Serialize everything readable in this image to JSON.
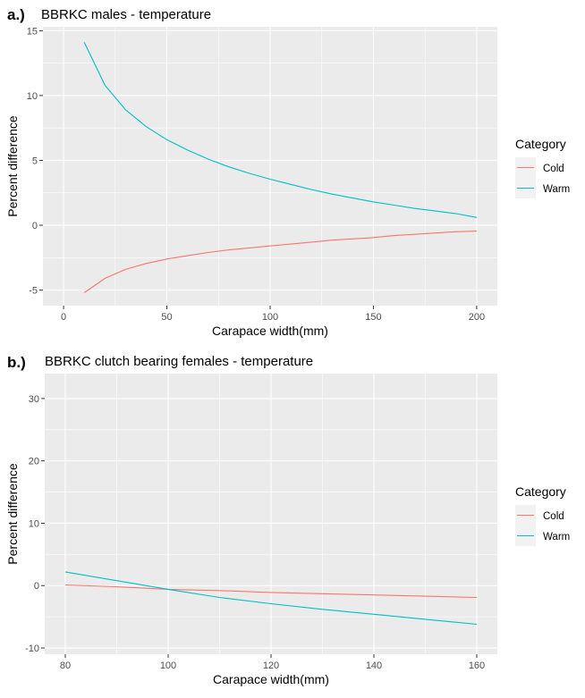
{
  "chart_data": [
    {
      "type": "line",
      "panel_tag": "a.)",
      "title": "BBRKC males - temperature",
      "xlabel": "Carapace width(mm)",
      "ylabel": "Percent difference",
      "xlim": [
        -10,
        210
      ],
      "ylim": [
        -6.2,
        15.3
      ],
      "xticks": [
        0,
        50,
        100,
        150,
        200
      ],
      "yticks": [
        -5,
        0,
        5,
        10,
        15
      ],
      "grid": true,
      "legend": {
        "title": "Category",
        "placement": "right"
      },
      "x": [
        10,
        20,
        30,
        40,
        50,
        60,
        70,
        80,
        90,
        100,
        110,
        120,
        130,
        140,
        150,
        160,
        170,
        180,
        190,
        200
      ],
      "series": [
        {
          "name": "Cold",
          "color": "#F8766D",
          "values": [
            -5.2,
            -4.1,
            -3.4,
            -2.95,
            -2.6,
            -2.35,
            -2.1,
            -1.9,
            -1.75,
            -1.6,
            -1.45,
            -1.3,
            -1.15,
            -1.05,
            -0.95,
            -0.8,
            -0.7,
            -0.6,
            -0.5,
            -0.45
          ]
        },
        {
          "name": "Warm",
          "color": "#00BFC4",
          "values": [
            14.1,
            10.8,
            8.9,
            7.6,
            6.6,
            5.8,
            5.1,
            4.5,
            4.0,
            3.55,
            3.15,
            2.75,
            2.4,
            2.1,
            1.8,
            1.55,
            1.3,
            1.1,
            0.9,
            0.6
          ]
        }
      ]
    },
    {
      "type": "line",
      "panel_tag": "b.)",
      "title": "BBRKC clutch bearing females - temperature",
      "xlabel": "Carapace width(mm)",
      "ylabel": "Percent difference",
      "xlim": [
        76,
        164
      ],
      "ylim": [
        -11,
        34
      ],
      "xticks": [
        80,
        100,
        120,
        140,
        160
      ],
      "yticks": [
        -10,
        0,
        10,
        20,
        30
      ],
      "grid": true,
      "legend": {
        "title": "Category",
        "placement": "right"
      },
      "x": [
        80,
        90,
        100,
        110,
        120,
        130,
        140,
        150,
        160
      ],
      "series": [
        {
          "name": "Cold",
          "color": "#F8766D",
          "values": [
            0.1,
            -0.2,
            -0.6,
            -0.8,
            -1.1,
            -1.3,
            -1.5,
            -1.7,
            -1.9
          ]
        },
        {
          "name": "Warm",
          "color": "#00BFC4",
          "values": [
            2.2,
            0.8,
            -0.6,
            -1.9,
            -2.9,
            -3.8,
            -4.6,
            -5.4,
            -6.2
          ]
        }
      ]
    }
  ]
}
